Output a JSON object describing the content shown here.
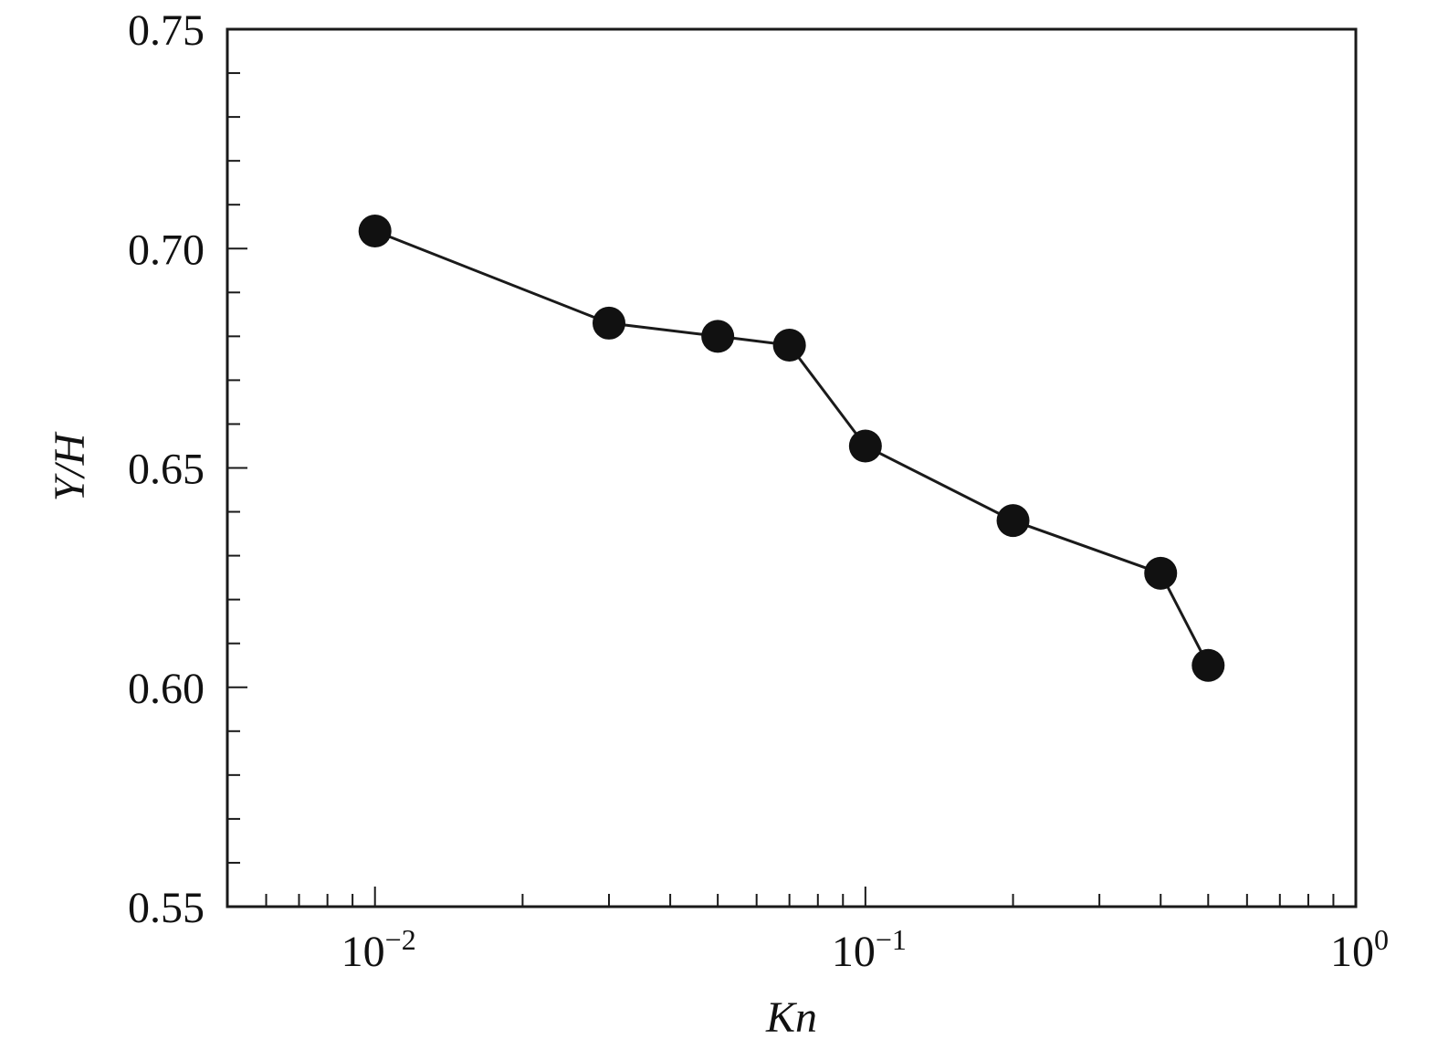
{
  "chart_data": {
    "type": "line",
    "xlabel": "Kn",
    "ylabel": "Y/H",
    "xscale": "log",
    "xlim": [
      0.005,
      1
    ],
    "ylim": [
      0.55,
      0.75
    ],
    "yticks": [
      0.55,
      0.6,
      0.65,
      0.7,
      0.75
    ],
    "ytick_labels": [
      "0.55",
      "0.60",
      "0.65",
      "0.70",
      "0.75"
    ],
    "xticks": [
      {
        "base": "10",
        "exp": "−2"
      },
      {
        "base": "10",
        "exp": "−1"
      },
      {
        "base": "10",
        "exp": "0"
      }
    ],
    "grid": false,
    "legend": "none",
    "colors": {
      "line": "#1a1a1a",
      "marker": "#111111"
    },
    "series": [
      {
        "x": [
          0.01,
          0.03,
          0.05,
          0.07,
          0.1,
          0.2,
          0.4,
          0.5
        ],
        "y": [
          0.704,
          0.683,
          0.68,
          0.678,
          0.655,
          0.638,
          0.626,
          0.605
        ]
      }
    ]
  }
}
